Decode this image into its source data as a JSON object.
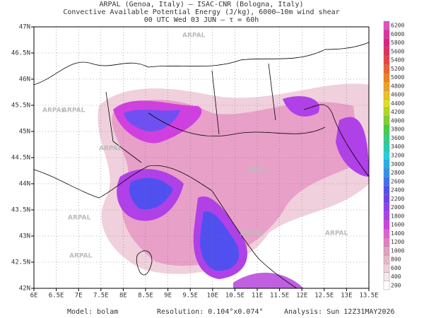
{
  "header": {
    "line1": "ARPAL (Genoa, Italy)  –  ISAC-CNR (Bologna, Italy)",
    "line2": "Convective Available Potential Energy (J/kg), 6000–10m wind shear",
    "line3": "00 UTC Wed 03 JUN  –  τ = 60h"
  },
  "map": {
    "watermark": "ARPAL",
    "grid": true,
    "xlim": [
      6,
      13.5
    ],
    "ylim": [
      42,
      47
    ],
    "xticks": [
      {
        "value": 6,
        "label": "6E"
      },
      {
        "value": 6.5,
        "label": "6.5E"
      },
      {
        "value": 7,
        "label": "7E"
      },
      {
        "value": 7.5,
        "label": "7.5E"
      },
      {
        "value": 8,
        "label": "8E"
      },
      {
        "value": 8.5,
        "label": "8.5E"
      },
      {
        "value": 9,
        "label": "9E"
      },
      {
        "value": 9.5,
        "label": "9.5E"
      },
      {
        "value": 10,
        "label": "10E"
      },
      {
        "value": 10.5,
        "label": "10.5E"
      },
      {
        "value": 11,
        "label": "11E"
      },
      {
        "value": 11.5,
        "label": "11.5E"
      },
      {
        "value": 12,
        "label": "12E"
      },
      {
        "value": 12.5,
        "label": "12.5E"
      },
      {
        "value": 13,
        "label": "13E"
      },
      {
        "value": 13.5,
        "label": "13.5E"
      }
    ],
    "yticks": [
      {
        "value": 42,
        "label": "42N"
      },
      {
        "value": 42.5,
        "label": "42.5N"
      },
      {
        "value": 43,
        "label": "43N"
      },
      {
        "value": 43.5,
        "label": "43.5N"
      },
      {
        "value": 44,
        "label": "44N"
      },
      {
        "value": 44.5,
        "label": "44.5N"
      },
      {
        "value": 45,
        "label": "45N"
      },
      {
        "value": 45.5,
        "label": "45.5N"
      },
      {
        "value": 46,
        "label": "46N"
      },
      {
        "value": 46.5,
        "label": "46.5N"
      },
      {
        "value": 47,
        "label": "47N"
      }
    ]
  },
  "colorbar": {
    "levels": [
      200,
      400,
      600,
      800,
      1000,
      1200,
      1400,
      1600,
      1800,
      2000,
      2200,
      2400,
      2600,
      2800,
      3000,
      3200,
      3400,
      3600,
      3800,
      4000,
      4200,
      4400,
      4600,
      4800,
      5000,
      5200,
      5400,
      5600,
      5800,
      6000,
      6200
    ],
    "colors": [
      "#ffffff",
      "#f6e8ee",
      "#f0d0dc",
      "#e8b8cc",
      "#e6a0c0",
      "#e080c0",
      "#e060d0",
      "#d040e0",
      "#b040e8",
      "#9040f0",
      "#7040f0",
      "#5050f0",
      "#4070f0",
      "#3090f0",
      "#20b0f0",
      "#20d0e0",
      "#20d0b0",
      "#30d080",
      "#40d040",
      "#80d030",
      "#b0d820",
      "#e0e020",
      "#f0c020",
      "#f0a020",
      "#f08020",
      "#f06030",
      "#f04040",
      "#e03060",
      "#e02080",
      "#e030a0",
      "#e050c0"
    ]
  },
  "footer": {
    "model": "Model: bolam",
    "resolution": "Resolution: 0.104°x0.074°",
    "analysis": "Analysis: Sun 12Z31MAY2026"
  }
}
